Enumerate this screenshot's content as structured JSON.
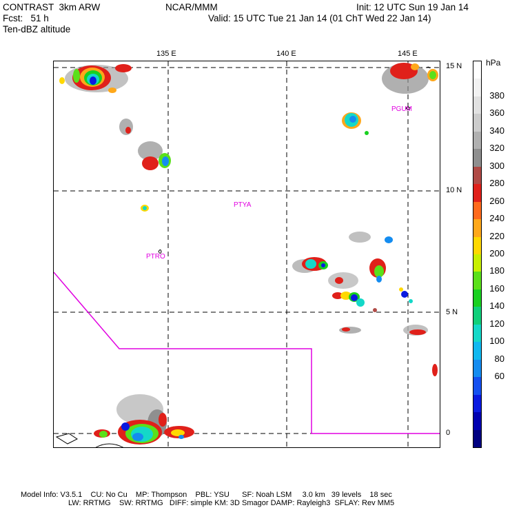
{
  "header": {
    "model": "CONTRAST  3km ARW",
    "org": "NCAR/MMM",
    "init": "Init: 12 UTC Sun 19 Jan 14",
    "fcst": "Fcst:   51 h",
    "valid": "Valid: 15 UTC Tue 21 Jan 14 (01 ChT Wed 22 Jan 14)",
    "field": "Ten-dBZ altitude"
  },
  "map": {
    "lon_labels": [
      "135 E",
      "140 E",
      "145 E"
    ],
    "lat_labels": [
      "15 N",
      "10 N",
      "5 N",
      "0"
    ],
    "stations": [
      "PGUM",
      "PTYA",
      "PTRO"
    ],
    "border_color": "#e000e0"
  },
  "legend": {
    "unit": "hPa",
    "levels": [
      "380",
      "360",
      "340",
      "320",
      "300",
      "280",
      "260",
      "240",
      "220",
      "200",
      "180",
      "160",
      "140",
      "120",
      "100",
      "80",
      "60"
    ],
    "colors": [
      "#ffffff",
      "#f2f2f2",
      "#e1e1e1",
      "#cccccc",
      "#b0b0b0",
      "#8f8f8f",
      "#b04a46",
      "#e0201a",
      "#ff6a1c",
      "#ffa81a",
      "#ffd800",
      "#c8f000",
      "#5ae01a",
      "#19d020",
      "#10cf7a",
      "#14d8c8",
      "#10b8f0",
      "#148cf0",
      "#1450f0",
      "#0a1ae0",
      "#0000b0",
      "#000080"
    ]
  },
  "footer": {
    "line1": "Model Info: V3.5.1    CU: No Cu    MP: Thompson    PBL: YSU      SF: Noah LSM     3.0 km   39 levels    18 sec",
    "line2": "LW: RRTMG    SW: RRTMG   DIFF: simple KM: 3D Smagor DAMP: Rayleigh3  SFLAY: Rev MM5"
  }
}
